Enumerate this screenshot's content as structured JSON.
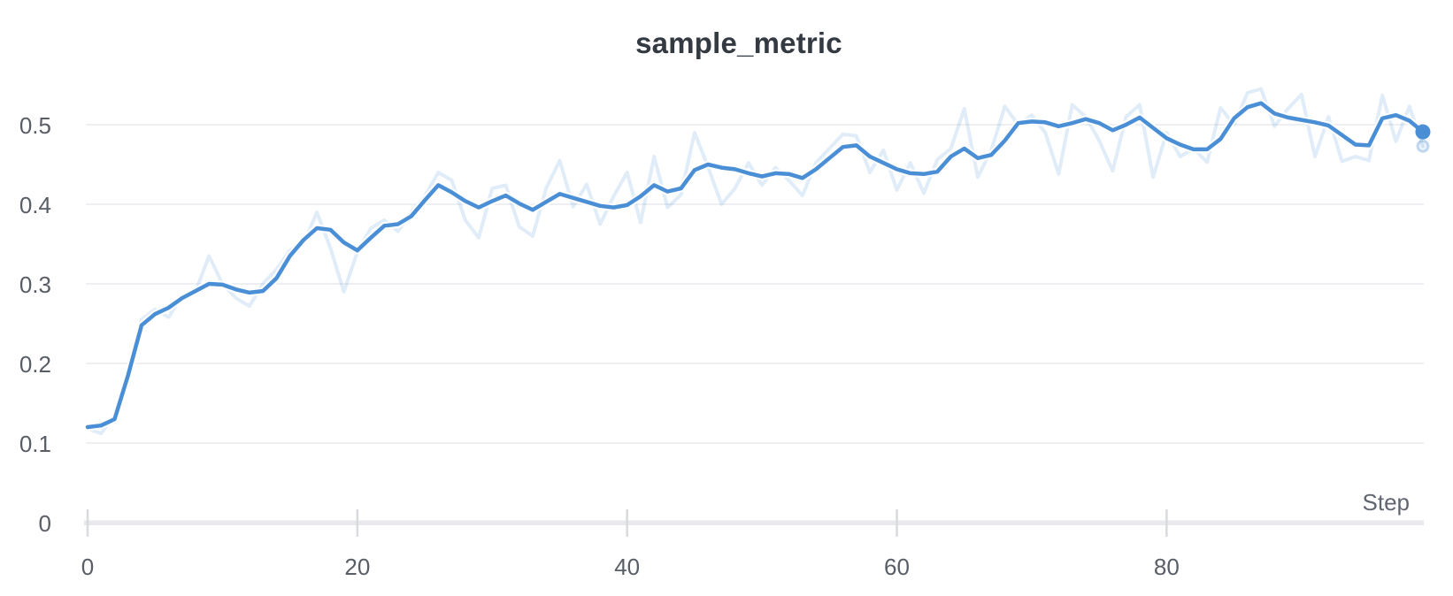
{
  "chart_data": {
    "type": "line",
    "title": "sample_metric",
    "xlabel": "Step",
    "ylabel": "",
    "legend": "none",
    "grid": "horizontal",
    "x_range": [
      0,
      99
    ],
    "x_step_interval": 1,
    "ylim": [
      0,
      0.55
    ],
    "xticks": [
      0,
      20,
      40,
      60,
      80
    ],
    "xtick_labels": [
      "0",
      "20",
      "40",
      "60",
      "80"
    ],
    "yticks": [
      0,
      0.1,
      0.2,
      0.3,
      0.4,
      0.5
    ],
    "ytick_labels": [
      "0",
      "0.1",
      "0.2",
      "0.3",
      "0.4",
      "0.5"
    ],
    "end_markers": true,
    "series": [
      {
        "name": "raw",
        "role": "original-values",
        "values": [
          0.118,
          0.112,
          0.135,
          0.19,
          0.255,
          0.268,
          0.258,
          0.285,
          0.29,
          0.335,
          0.3,
          0.282,
          0.272,
          0.3,
          0.318,
          0.342,
          0.35,
          0.39,
          0.345,
          0.29,
          0.34,
          0.37,
          0.38,
          0.366,
          0.39,
          0.41,
          0.44,
          0.43,
          0.38,
          0.358,
          0.42,
          0.424,
          0.372,
          0.36,
          0.42,
          0.455,
          0.397,
          0.425,
          0.375,
          0.41,
          0.44,
          0.377,
          0.46,
          0.396,
          0.412,
          0.49,
          0.447,
          0.4,
          0.42,
          0.452,
          0.424,
          0.446,
          0.43,
          0.411,
          0.452,
          0.47,
          0.488,
          0.486,
          0.44,
          0.468,
          0.418,
          0.452,
          0.414,
          0.456,
          0.47,
          0.52,
          0.434,
          0.468,
          0.523,
          0.5,
          0.512,
          0.49,
          0.438,
          0.525,
          0.51,
          0.48,
          0.442,
          0.51,
          0.525,
          0.434,
          0.49,
          0.46,
          0.47,
          0.453,
          0.521,
          0.5,
          0.54,
          0.545,
          0.498,
          0.52,
          0.538,
          0.46,
          0.51,
          0.454,
          0.46,
          0.455,
          0.537,
          0.479,
          0.523,
          0.473
        ]
      },
      {
        "name": "smoothed",
        "role": "smoothed-values",
        "values": [
          0.12,
          0.122,
          0.13,
          0.185,
          0.248,
          0.262,
          0.27,
          0.282,
          0.291,
          0.3,
          0.299,
          0.293,
          0.289,
          0.291,
          0.307,
          0.335,
          0.355,
          0.37,
          0.368,
          0.352,
          0.342,
          0.358,
          0.373,
          0.375,
          0.385,
          0.405,
          0.424,
          0.415,
          0.404,
          0.396,
          0.404,
          0.411,
          0.401,
          0.393,
          0.403,
          0.413,
          0.408,
          0.403,
          0.398,
          0.396,
          0.399,
          0.41,
          0.424,
          0.416,
          0.42,
          0.443,
          0.45,
          0.446,
          0.444,
          0.439,
          0.435,
          0.439,
          0.438,
          0.433,
          0.444,
          0.458,
          0.472,
          0.474,
          0.46,
          0.452,
          0.444,
          0.439,
          0.438,
          0.441,
          0.46,
          0.47,
          0.458,
          0.462,
          0.48,
          0.502,
          0.504,
          0.503,
          0.498,
          0.502,
          0.507,
          0.502,
          0.493,
          0.5,
          0.509,
          0.496,
          0.483,
          0.475,
          0.469,
          0.469,
          0.482,
          0.508,
          0.522,
          0.527,
          0.514,
          0.509,
          0.506,
          0.503,
          0.499,
          0.487,
          0.475,
          0.474,
          0.508,
          0.512,
          0.505,
          0.491
        ]
      }
    ],
    "final_values": {
      "smoothed": 0.491,
      "raw": 0.473
    }
  },
  "colors": {
    "background": "#ffffff",
    "accent_blue": "#4A8FD5",
    "raw_line": "rgba(74,143,213,0.17)",
    "line_halo": "rgba(255,255,255,0.85)",
    "gridline": "#e9eaed",
    "axis_bar": "#e8e9ec",
    "axis_tick": "#d9dade",
    "title_text": "#343a42",
    "tick_label_text": "#585d66",
    "axis_title_text": "#60656f",
    "raw_dot_stroke": "rgba(74,143,213,0.32)",
    "raw_dot_fill": "rgba(74,143,213,0.10)"
  }
}
